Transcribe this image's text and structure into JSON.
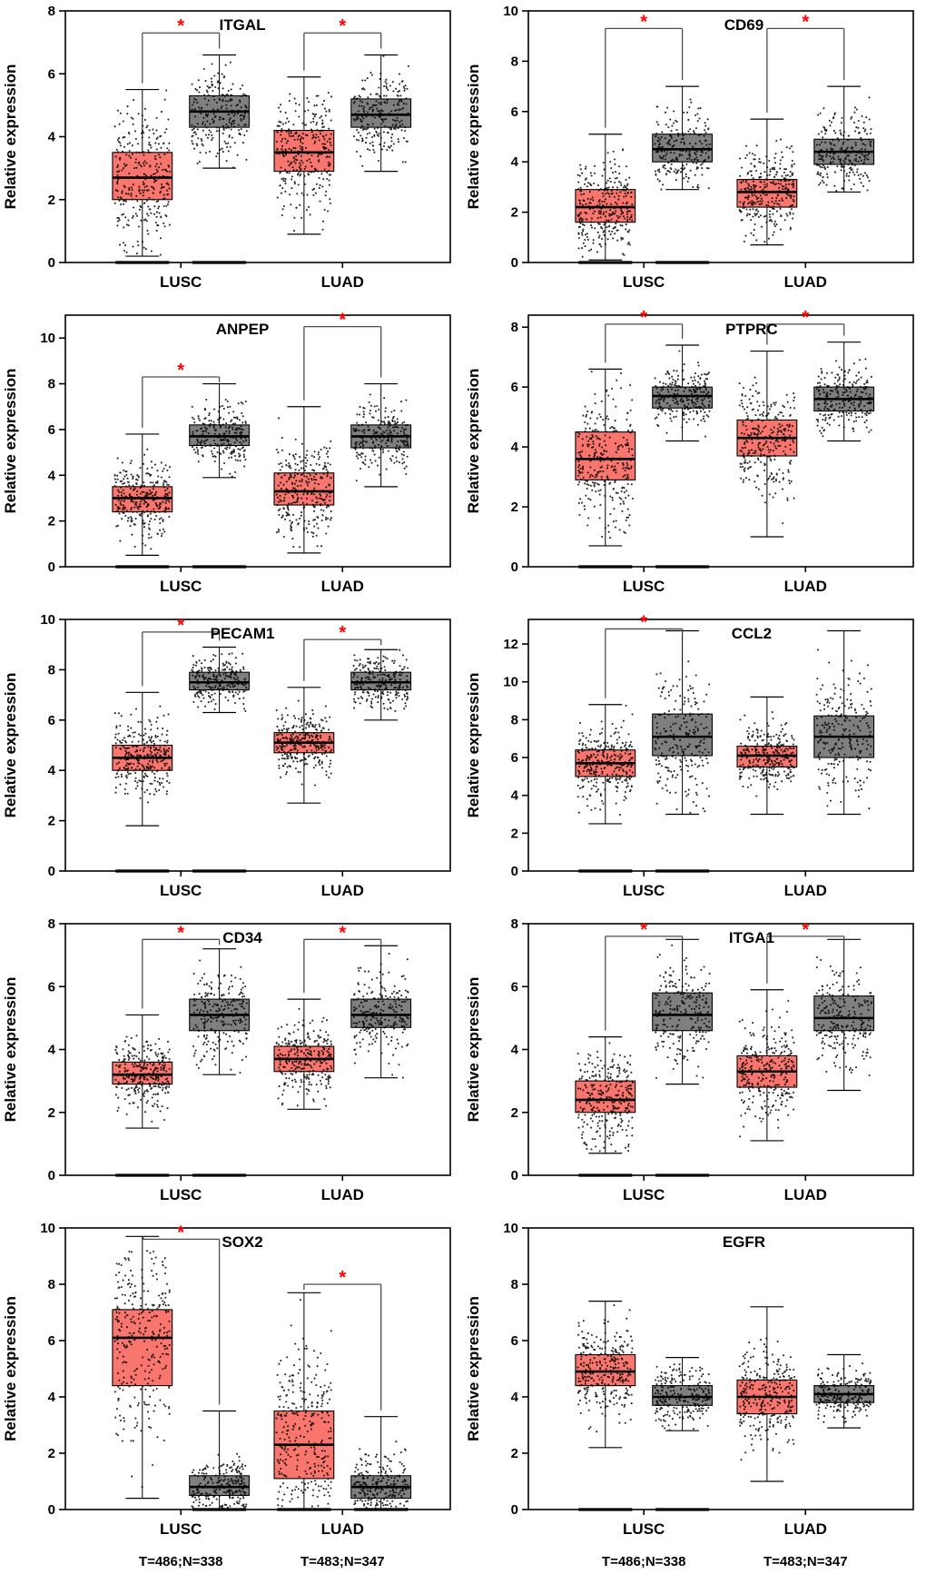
{
  "figure": {
    "type": "boxplot-grid",
    "columns": 2,
    "ylabel": "Relative expression",
    "tumor_color": "#F8766D",
    "normal_color": "#7F7F7F",
    "sig_color": "#FF0000",
    "box_border_color": "#000000",
    "point_color": "#000000",
    "groups": [
      "LUSC",
      "LUAD"
    ],
    "legend_kinds": [
      "tumor",
      "normal"
    ]
  },
  "chart_data": [
    {
      "type": "box",
      "gene": "ITGAL",
      "title_x": 0.46,
      "ylim": [
        0,
        8
      ],
      "yticks": [
        0,
        2,
        4,
        6,
        8
      ],
      "groups": [
        "LUSC",
        "LUAD"
      ],
      "boxes": [
        {
          "group": "LUSC",
          "kind": "tumor",
          "low": 0.2,
          "q1": 2.0,
          "median": 2.7,
          "q3": 3.5,
          "high": 5.5,
          "zero_dash": true
        },
        {
          "group": "LUSC",
          "kind": "normal",
          "low": 3.0,
          "q1": 4.3,
          "median": 4.8,
          "q3": 5.3,
          "high": 6.6,
          "zero_dash": true
        },
        {
          "group": "LUAD",
          "kind": "tumor",
          "low": 0.9,
          "q1": 2.9,
          "median": 3.5,
          "q3": 4.2,
          "high": 5.9,
          "zero_dash": false
        },
        {
          "group": "LUAD",
          "kind": "normal",
          "low": 2.9,
          "q1": 4.3,
          "median": 4.7,
          "q3": 5.2,
          "high": 6.6,
          "zero_dash": false
        }
      ],
      "sig": [
        {
          "boxes": [
            0,
            1
          ],
          "y": 7.3,
          "label": "*"
        },
        {
          "boxes": [
            2,
            3
          ],
          "y": 7.3,
          "label": "*"
        }
      ],
      "sample_labels": null
    },
    {
      "type": "box",
      "gene": "CD69",
      "title_x": 0.56,
      "ylim": [
        0,
        10
      ],
      "yticks": [
        0,
        2,
        4,
        6,
        8,
        10
      ],
      "groups": [
        "LUSC",
        "LUAD"
      ],
      "boxes": [
        {
          "group": "LUSC",
          "kind": "tumor",
          "low": 0.1,
          "q1": 1.6,
          "median": 2.2,
          "q3": 2.9,
          "high": 5.1,
          "zero_dash": true
        },
        {
          "group": "LUSC",
          "kind": "normal",
          "low": 2.9,
          "q1": 4.0,
          "median": 4.5,
          "q3": 5.1,
          "high": 7.0,
          "zero_dash": true
        },
        {
          "group": "LUAD",
          "kind": "tumor",
          "low": 0.7,
          "q1": 2.2,
          "median": 2.8,
          "q3": 3.3,
          "high": 5.7,
          "zero_dash": false
        },
        {
          "group": "LUAD",
          "kind": "normal",
          "low": 2.8,
          "q1": 3.9,
          "median": 4.4,
          "q3": 4.9,
          "high": 7.0,
          "zero_dash": false
        }
      ],
      "sig": [
        {
          "boxes": [
            0,
            1
          ],
          "y": 9.3,
          "label": "*"
        },
        {
          "boxes": [
            2,
            3
          ],
          "y": 9.3,
          "label": "*"
        }
      ],
      "sample_labels": null
    },
    {
      "type": "box",
      "gene": "ANPEP",
      "title_x": 0.46,
      "ylim": [
        0,
        11
      ],
      "yticks": [
        0,
        2,
        4,
        6,
        8,
        10
      ],
      "groups": [
        "LUSC",
        "LUAD"
      ],
      "boxes": [
        {
          "group": "LUSC",
          "kind": "tumor",
          "low": 0.5,
          "q1": 2.4,
          "median": 3.0,
          "q3": 3.5,
          "high": 5.8,
          "zero_dash": true
        },
        {
          "group": "LUSC",
          "kind": "normal",
          "low": 3.9,
          "q1": 5.3,
          "median": 5.7,
          "q3": 6.2,
          "high": 8.0,
          "zero_dash": true
        },
        {
          "group": "LUAD",
          "kind": "tumor",
          "low": 0.6,
          "q1": 2.7,
          "median": 3.3,
          "q3": 4.1,
          "high": 7.0,
          "zero_dash": false
        },
        {
          "group": "LUAD",
          "kind": "normal",
          "low": 3.5,
          "q1": 5.2,
          "median": 5.7,
          "q3": 6.2,
          "high": 8.0,
          "zero_dash": false
        }
      ],
      "sig": [
        {
          "boxes": [
            0,
            1
          ],
          "y": 8.3,
          "label": "*"
        },
        {
          "boxes": [
            2,
            3
          ],
          "y": 10.5,
          "label": "*"
        }
      ],
      "sample_labels": null
    },
    {
      "type": "box",
      "gene": "PTPRC",
      "title_x": 0.58,
      "ylim": [
        0,
        8.4
      ],
      "yticks": [
        0,
        2,
        4,
        6,
        8
      ],
      "groups": [
        "LUSC",
        "LUAD"
      ],
      "boxes": [
        {
          "group": "LUSC",
          "kind": "tumor",
          "low": 0.7,
          "q1": 2.9,
          "median": 3.6,
          "q3": 4.5,
          "high": 6.6,
          "zero_dash": true
        },
        {
          "group": "LUSC",
          "kind": "normal",
          "low": 4.2,
          "q1": 5.3,
          "median": 5.7,
          "q3": 6.0,
          "high": 7.4,
          "zero_dash": true
        },
        {
          "group": "LUAD",
          "kind": "tumor",
          "low": 1.0,
          "q1": 3.7,
          "median": 4.3,
          "q3": 4.9,
          "high": 7.2,
          "zero_dash": false
        },
        {
          "group": "LUAD",
          "kind": "normal",
          "low": 4.2,
          "q1": 5.2,
          "median": 5.6,
          "q3": 6.0,
          "high": 7.5,
          "zero_dash": false
        }
      ],
      "sig": [
        {
          "boxes": [
            0,
            1
          ],
          "y": 8.1,
          "label": "*"
        },
        {
          "boxes": [
            2,
            3
          ],
          "y": 8.1,
          "label": "*"
        }
      ],
      "sample_labels": null
    },
    {
      "type": "box",
      "gene": "PECAM1",
      "title_x": 0.46,
      "ylim": [
        0,
        10
      ],
      "yticks": [
        0,
        2,
        4,
        6,
        8,
        10
      ],
      "groups": [
        "LUSC",
        "LUAD"
      ],
      "boxes": [
        {
          "group": "LUSC",
          "kind": "tumor",
          "low": 1.8,
          "q1": 4.0,
          "median": 4.5,
          "q3": 5.0,
          "high": 7.1,
          "zero_dash": true
        },
        {
          "group": "LUSC",
          "kind": "normal",
          "low": 6.3,
          "q1": 7.2,
          "median": 7.5,
          "q3": 7.9,
          "high": 8.9,
          "zero_dash": true
        },
        {
          "group": "LUAD",
          "kind": "tumor",
          "low": 2.7,
          "q1": 4.7,
          "median": 5.1,
          "q3": 5.5,
          "high": 7.3,
          "zero_dash": false
        },
        {
          "group": "LUAD",
          "kind": "normal",
          "low": 6.0,
          "q1": 7.2,
          "median": 7.5,
          "q3": 7.9,
          "high": 8.8,
          "zero_dash": false
        }
      ],
      "sig": [
        {
          "boxes": [
            0,
            1
          ],
          "y": 9.5,
          "label": "*"
        },
        {
          "boxes": [
            2,
            3
          ],
          "y": 9.2,
          "label": "*"
        }
      ],
      "sample_labels": null
    },
    {
      "type": "box",
      "gene": "CCL2",
      "title_x": 0.58,
      "ylim": [
        0,
        13.3
      ],
      "yticks": [
        0,
        2,
        4,
        6,
        8,
        10,
        12
      ],
      "groups": [
        "LUSC",
        "LUAD"
      ],
      "boxes": [
        {
          "group": "LUSC",
          "kind": "tumor",
          "low": 2.5,
          "q1": 5.0,
          "median": 5.7,
          "q3": 6.4,
          "high": 8.8,
          "zero_dash": true
        },
        {
          "group": "LUSC",
          "kind": "normal",
          "low": 3.0,
          "q1": 6.1,
          "median": 7.1,
          "q3": 8.3,
          "high": 12.7,
          "zero_dash": true
        },
        {
          "group": "LUAD",
          "kind": "tumor",
          "low": 3.0,
          "q1": 5.5,
          "median": 6.1,
          "q3": 6.6,
          "high": 9.2,
          "zero_dash": false
        },
        {
          "group": "LUAD",
          "kind": "normal",
          "low": 3.0,
          "q1": 6.0,
          "median": 7.1,
          "q3": 8.2,
          "high": 12.7,
          "zero_dash": false
        }
      ],
      "sig": [
        {
          "boxes": [
            0,
            1
          ],
          "y": 12.8,
          "label": "*"
        }
      ],
      "sample_labels": null
    },
    {
      "type": "box",
      "gene": "CD34",
      "title_x": 0.46,
      "ylim": [
        0,
        8
      ],
      "yticks": [
        0,
        2,
        4,
        6,
        8
      ],
      "groups": [
        "LUSC",
        "LUAD"
      ],
      "boxes": [
        {
          "group": "LUSC",
          "kind": "tumor",
          "low": 1.5,
          "q1": 2.9,
          "median": 3.2,
          "q3": 3.6,
          "high": 5.1,
          "zero_dash": true
        },
        {
          "group": "LUSC",
          "kind": "normal",
          "low": 3.2,
          "q1": 4.6,
          "median": 5.1,
          "q3": 5.6,
          "high": 7.2,
          "zero_dash": true
        },
        {
          "group": "LUAD",
          "kind": "tumor",
          "low": 2.1,
          "q1": 3.3,
          "median": 3.7,
          "q3": 4.1,
          "high": 5.6,
          "zero_dash": false
        },
        {
          "group": "LUAD",
          "kind": "normal",
          "low": 3.1,
          "q1": 4.7,
          "median": 5.1,
          "q3": 5.6,
          "high": 7.3,
          "zero_dash": false
        }
      ],
      "sig": [
        {
          "boxes": [
            0,
            1
          ],
          "y": 7.5,
          "label": "*"
        },
        {
          "boxes": [
            2,
            3
          ],
          "y": 7.5,
          "label": "*"
        }
      ],
      "sample_labels": null
    },
    {
      "type": "box",
      "gene": "ITGA1",
      "title_x": 0.58,
      "ylim": [
        0,
        8
      ],
      "yticks": [
        0,
        2,
        4,
        6,
        8
      ],
      "groups": [
        "LUSC",
        "LUAD"
      ],
      "boxes": [
        {
          "group": "LUSC",
          "kind": "tumor",
          "low": 0.7,
          "q1": 2.0,
          "median": 2.4,
          "q3": 3.0,
          "high": 4.4,
          "zero_dash": true
        },
        {
          "group": "LUSC",
          "kind": "normal",
          "low": 2.9,
          "q1": 4.6,
          "median": 5.1,
          "q3": 5.8,
          "high": 7.5,
          "zero_dash": true
        },
        {
          "group": "LUAD",
          "kind": "tumor",
          "low": 1.1,
          "q1": 2.8,
          "median": 3.3,
          "q3": 3.8,
          "high": 5.9,
          "zero_dash": false
        },
        {
          "group": "LUAD",
          "kind": "normal",
          "low": 2.7,
          "q1": 4.6,
          "median": 5.0,
          "q3": 5.7,
          "high": 7.5,
          "zero_dash": false
        }
      ],
      "sig": [
        {
          "boxes": [
            0,
            1
          ],
          "y": 7.6,
          "label": "*"
        },
        {
          "boxes": [
            2,
            3
          ],
          "y": 7.6,
          "label": "*"
        }
      ],
      "sample_labels": null
    },
    {
      "type": "box",
      "gene": "SOX2",
      "title_x": 0.46,
      "ylim": [
        0,
        10
      ],
      "yticks": [
        0,
        2,
        4,
        6,
        8,
        10
      ],
      "groups": [
        "LUSC",
        "LUAD"
      ],
      "boxes": [
        {
          "group": "LUSC",
          "kind": "tumor",
          "low": 0.4,
          "q1": 4.4,
          "median": 6.1,
          "q3": 7.1,
          "high": 9.7,
          "zero_dash": false
        },
        {
          "group": "LUSC",
          "kind": "normal",
          "low": 0.0,
          "q1": 0.5,
          "median": 0.8,
          "q3": 1.2,
          "high": 3.5,
          "zero_dash": true
        },
        {
          "group": "LUAD",
          "kind": "tumor",
          "low": 0.0,
          "q1": 1.1,
          "median": 2.3,
          "q3": 3.5,
          "high": 7.7,
          "zero_dash": true
        },
        {
          "group": "LUAD",
          "kind": "normal",
          "low": 0.0,
          "q1": 0.4,
          "median": 0.8,
          "q3": 1.2,
          "high": 3.3,
          "zero_dash": true
        }
      ],
      "sig": [
        {
          "boxes": [
            0,
            1
          ],
          "y": 9.6,
          "label": "*"
        },
        {
          "boxes": [
            2,
            3
          ],
          "y": 8.0,
          "label": "*"
        }
      ],
      "sample_labels": [
        "T=486;N=338",
        "T=483;N=347"
      ]
    },
    {
      "type": "box",
      "gene": "EGFR",
      "title_x": 0.56,
      "ylim": [
        0,
        10
      ],
      "yticks": [
        0,
        2,
        4,
        6,
        8,
        10
      ],
      "groups": [
        "LUSC",
        "LUAD"
      ],
      "boxes": [
        {
          "group": "LUSC",
          "kind": "tumor",
          "low": 2.2,
          "q1": 4.4,
          "median": 4.9,
          "q3": 5.5,
          "high": 7.4,
          "zero_dash": true
        },
        {
          "group": "LUSC",
          "kind": "normal",
          "low": 2.8,
          "q1": 3.7,
          "median": 4.0,
          "q3": 4.4,
          "high": 5.4,
          "zero_dash": true
        },
        {
          "group": "LUAD",
          "kind": "tumor",
          "low": 1.0,
          "q1": 3.4,
          "median": 4.0,
          "q3": 4.6,
          "high": 7.2,
          "zero_dash": false
        },
        {
          "group": "LUAD",
          "kind": "normal",
          "low": 2.9,
          "q1": 3.8,
          "median": 4.1,
          "q3": 4.4,
          "high": 5.5,
          "zero_dash": false
        }
      ],
      "sig": [],
      "sample_labels": [
        "T=486;N=338",
        "T=483;N=347"
      ]
    }
  ]
}
